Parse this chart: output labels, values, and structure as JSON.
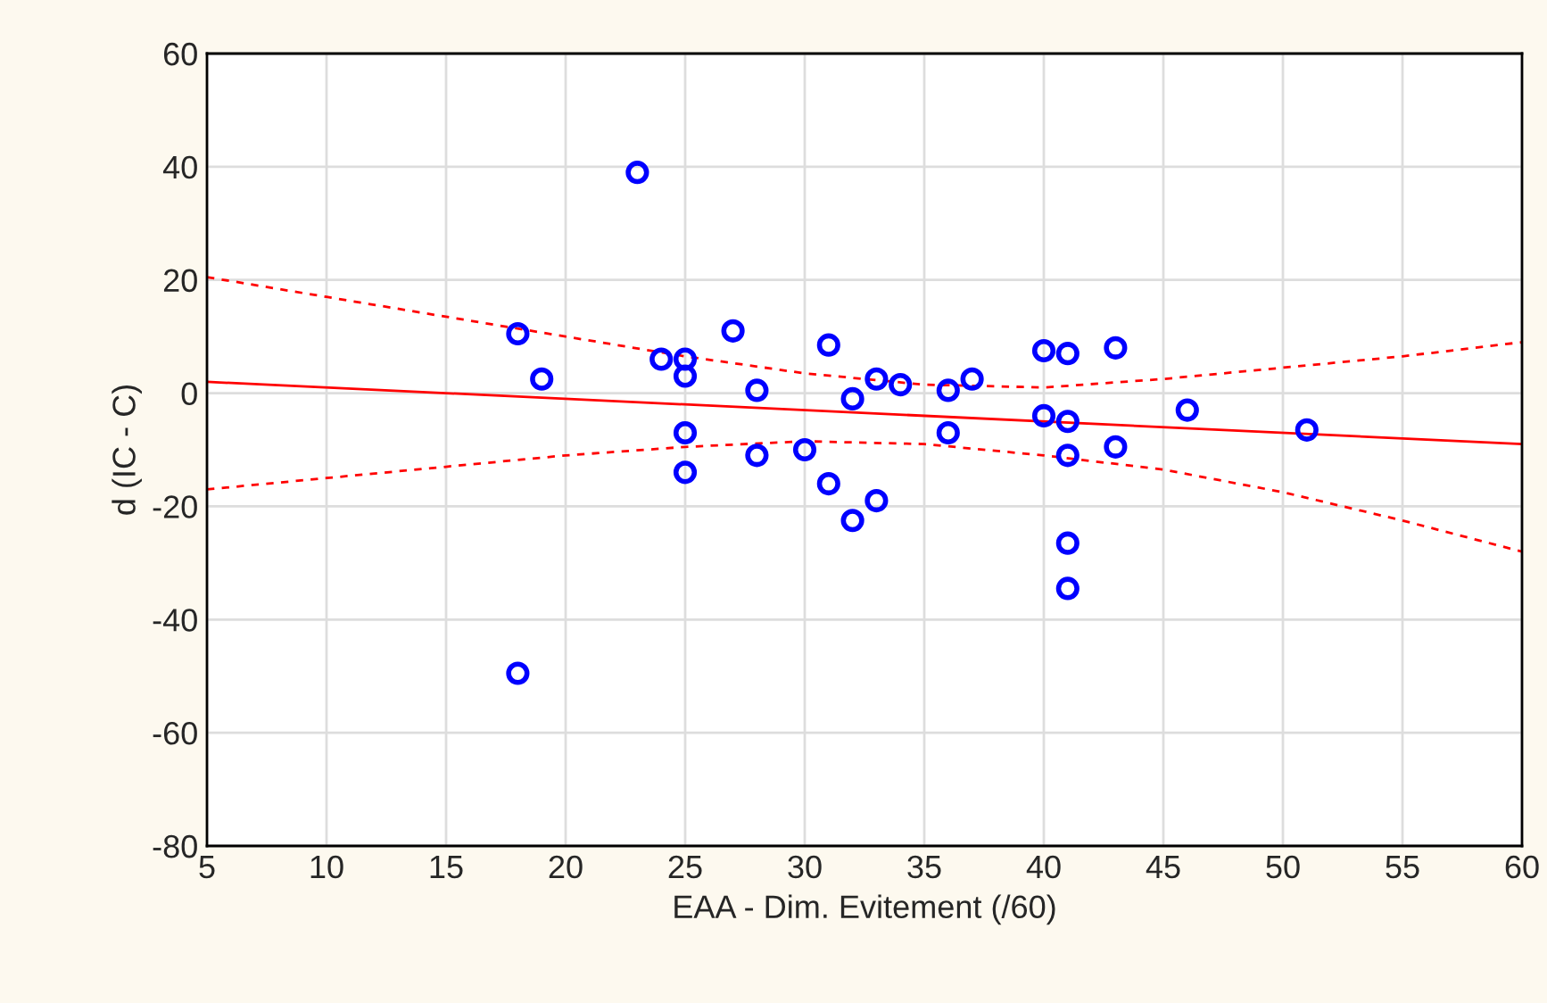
{
  "chart_data": {
    "type": "scatter",
    "xlabel": "EAA - Dim. Evitement (/60)",
    "ylabel": "d (IC - C)",
    "xlim": [
      5,
      60
    ],
    "xticks": [
      5,
      10,
      15,
      20,
      25,
      30,
      35,
      40,
      45,
      50,
      55,
      60
    ],
    "ylim": [
      -80,
      60
    ],
    "yticks": [
      -80,
      -60,
      -40,
      -20,
      0,
      20,
      40,
      60
    ],
    "grid": true,
    "legend": false,
    "series": [
      {
        "color": "#0000ff",
        "marker": "circle",
        "x": [
          18,
          18,
          19,
          23,
          24,
          25,
          25,
          25,
          25,
          27,
          28,
          28,
          30,
          31,
          31,
          32,
          32,
          33,
          33,
          34,
          36,
          36,
          37,
          40,
          40,
          41,
          41,
          41,
          41,
          41,
          43,
          43,
          46,
          51
        ],
        "values": [
          10.5,
          -49.5,
          2.5,
          39,
          6,
          6,
          3,
          -7,
          -14,
          11,
          0.5,
          -11,
          -10,
          8.5,
          -16,
          -1,
          -22.5,
          2.5,
          -19,
          1.5,
          0.5,
          -7,
          2.5,
          7.5,
          -4,
          7,
          -5,
          -11,
          -26.5,
          -34.5,
          8,
          -9.5,
          -3,
          -6.5
        ]
      },
      {
        "type": "line",
        "color": "#ff0000",
        "line_style": "solid",
        "x": [
          5,
          60
        ],
        "values": [
          2,
          -9
        ]
      },
      {
        "type": "line",
        "color": "#ff0000",
        "line_style": "dashed",
        "x": [
          5,
          10,
          15,
          20,
          25,
          30,
          35,
          40,
          45,
          50,
          55,
          60
        ],
        "values": [
          20.5,
          17,
          13.5,
          10,
          6.5,
          3.5,
          1.5,
          1,
          2.5,
          4.5,
          6.5,
          9
        ]
      },
      {
        "type": "line",
        "color": "#ff0000",
        "line_style": "dashed",
        "x": [
          5,
          10,
          15,
          20,
          25,
          30,
          35,
          40,
          45,
          50,
          55,
          60
        ],
        "values": [
          -17,
          -15,
          -13,
          -11,
          -9.5,
          -8.5,
          -9,
          -11,
          -13.5,
          -17.5,
          -22.5,
          -28
        ]
      }
    ]
  }
}
